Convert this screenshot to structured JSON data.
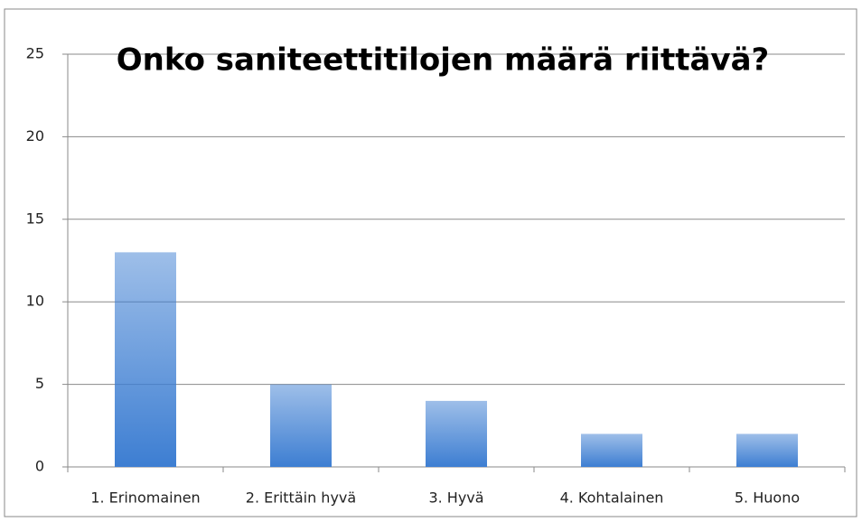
{
  "chart_data": {
    "type": "bar",
    "title": "Onko saniteettitilojen määrä riittävä?",
    "categories": [
      "1. Erinomainen",
      "2. Erittäin hyvä",
      "3. Hyvä",
      "4. Kohtalainen",
      "5. Huono"
    ],
    "values": [
      13,
      5,
      4,
      2,
      2
    ],
    "color": "#3d7ed2",
    "ylim": [
      0,
      25
    ],
    "yticks": [
      0,
      5,
      10,
      15,
      20,
      25
    ],
    "grid": true
  }
}
